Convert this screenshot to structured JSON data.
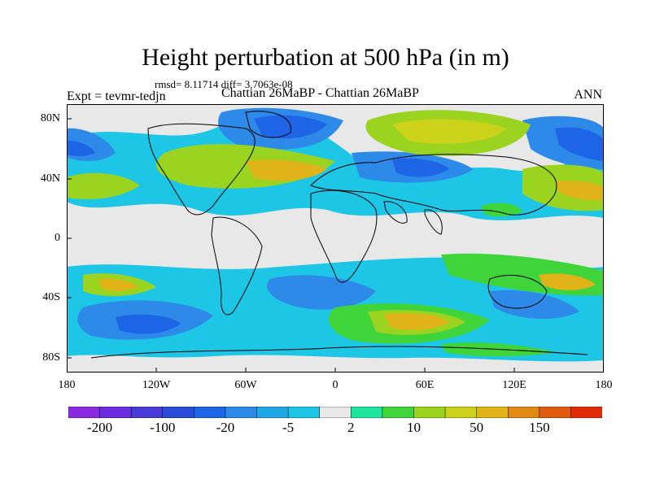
{
  "title": "Height perturbation at 500 hPa (in m)",
  "stats": "rmsd= 8.11714 diff= 3.7063e-08",
  "expt": "Expt = tevmr-tedjn",
  "center_label": "Chattian  26MaBP - Chattian  26MaBP",
  "season": "ANN",
  "lat_ticks": [
    "80N",
    "40N",
    "0",
    "40S",
    "80S"
  ],
  "lon_ticks": [
    "180",
    "120W",
    "60W",
    "0",
    "60E",
    "120E",
    "180"
  ],
  "colorbar": {
    "colors": [
      "#8a2be2",
      "#6a2ee0",
      "#4a3ad8",
      "#2a4ad8",
      "#1e64e6",
      "#2d8ae8",
      "#1fa7e8",
      "#1ec6e6",
      "#e8e8e8",
      "#1ee6a0",
      "#3fd43a",
      "#9ad420",
      "#ccd21a",
      "#e0b419",
      "#e08a14",
      "#e05a0f",
      "#e02a0a"
    ],
    "labels": [
      "-200",
      "-100",
      "-20",
      "-5",
      "2",
      "10",
      "50",
      "150"
    ]
  },
  "legend_colors": {
    "background": "#e8e8e8",
    "coast": "#000000"
  }
}
